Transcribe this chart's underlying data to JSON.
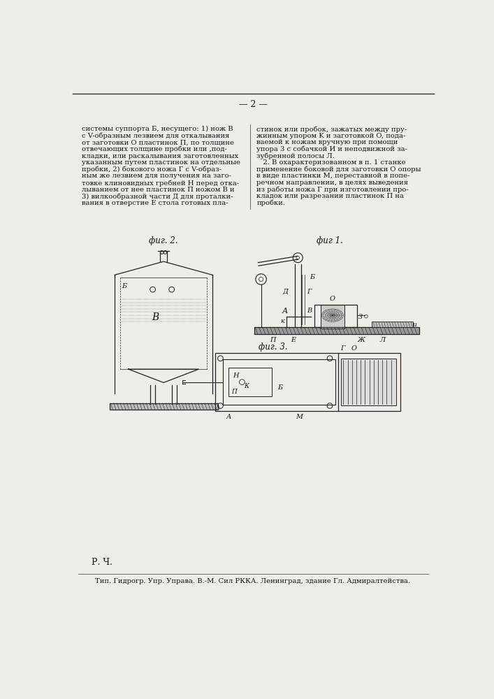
{
  "background_color": "#f0ede8",
  "page_number": "— 2 —",
  "text_left": [
    "системы суппорта Б, несущего: 1) нож В",
    "с V-образным лезвием для откалывания",
    "от заготовки O пластинок П, по толщине",
    "отвечающих толщине пробки или ,под-",
    "кладки, или раскалывания заготовленных",
    "указанным путем пластинок на отдельные",
    "пробки, 2) бокового ножа Г с V-образ-",
    "ным же лезвием для получения на заго-",
    "товке клиновидных гребней H перед отка-",
    "лыванием от нее пластинок П ножом В и",
    "3) вилкообразной части Д для проталки-",
    "вания в отверстие E стола готовых пла-"
  ],
  "text_right": [
    "стинок или пробок, зажатых между пру-",
    "жинным упором K и заготовкой O, пода-",
    "ваемой к ножам вручную при помощи",
    "упора 3 с собачкой И и неподвижной за-",
    "зубренной полосы Л.",
    "   2. В охарактеризованном в п. 1 станке",
    "применение боковой для заготовки O опоры",
    "в виде пластинки M, переставной в попе-",
    "речном направлении, в целях выведения",
    "из работы ножа Г при изготовлении про-",
    "кладок или разрезании пластинок П на",
    "пробки."
  ],
  "fig2_label": "фиг. 2.",
  "fig1_label": "фиг 1.",
  "fig3_label": "фиг. 3.",
  "footer_left": "Р. Ч.",
  "footer_text": "Тип. Гидрогр. Упр. Управа. В.-М. Сил РККА. Ленинград, здание Гл. Адмиралтейства.",
  "line_color": "#333333",
  "text_color": "#111111",
  "fig_color": "#222222"
}
